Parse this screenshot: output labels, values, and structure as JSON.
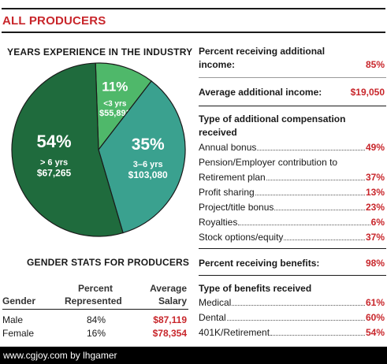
{
  "title": "ALL PRODUCERS",
  "experience": {
    "heading": "YEARS EXPERIENCE IN THE INDUSTRY"
  },
  "chart_data": {
    "type": "pie",
    "title": "YEARS EXPERIENCE IN THE INDUSTRY",
    "slices": [
      {
        "pct_label": "11%",
        "range": "<3 yrs",
        "salary": "$55,893",
        "value": 11,
        "color": "#4fb86a"
      },
      {
        "pct_label": "35%",
        "range": "3–6 yrs",
        "salary": "$103,080",
        "value": 35,
        "color": "#3aa18f"
      },
      {
        "pct_label": "54%",
        "range": "> 6 yrs",
        "salary": "$67,265",
        "value": 54,
        "color": "#1f6b3d"
      }
    ]
  },
  "gender": {
    "heading": "GENDER STATS FOR PRODUCERS",
    "col_gender": "Gender",
    "col_percent_1": "Percent",
    "col_percent_2": "Represented",
    "col_salary_1": "Average",
    "col_salary_2": "Salary",
    "rows": [
      {
        "gender": "Male",
        "percent": "84%",
        "salary": "$87,119"
      },
      {
        "gender": "Female",
        "percent": "16%",
        "salary": "$78,354"
      }
    ]
  },
  "additional_income": {
    "label_1": "Percent receiving additional",
    "label_2": "income:",
    "value": "85%"
  },
  "avg_additional_income": {
    "label": "Average additional income:",
    "value": "$19,050"
  },
  "comp_types": {
    "heading_1": "Type of additional compensation",
    "heading_2": "received",
    "items": [
      {
        "label": "Annual bonus",
        "value": "49%"
      },
      {
        "label": "Pension/Employer contribution to",
        "value": ""
      },
      {
        "label": "Retirement plan",
        "value": "37%"
      },
      {
        "label": "Profit sharing",
        "value": "13%"
      },
      {
        "label": "Project/title bonus",
        "value": "23%"
      },
      {
        "label": "Royalties",
        "value": "6%"
      },
      {
        "label": "Stock options/equity",
        "value": "37%"
      }
    ]
  },
  "benefits": {
    "label": "Percent receiving benefits:",
    "value": "98%"
  },
  "benefit_types": {
    "heading": "Type of benefits received",
    "items": [
      {
        "label": "Medical",
        "value": "61%"
      },
      {
        "label": "Dental",
        "value": "60%"
      },
      {
        "label": "401K/Retirement",
        "value": "54%"
      }
    ]
  },
  "footer": "www.cgjoy.com by lhgamer"
}
